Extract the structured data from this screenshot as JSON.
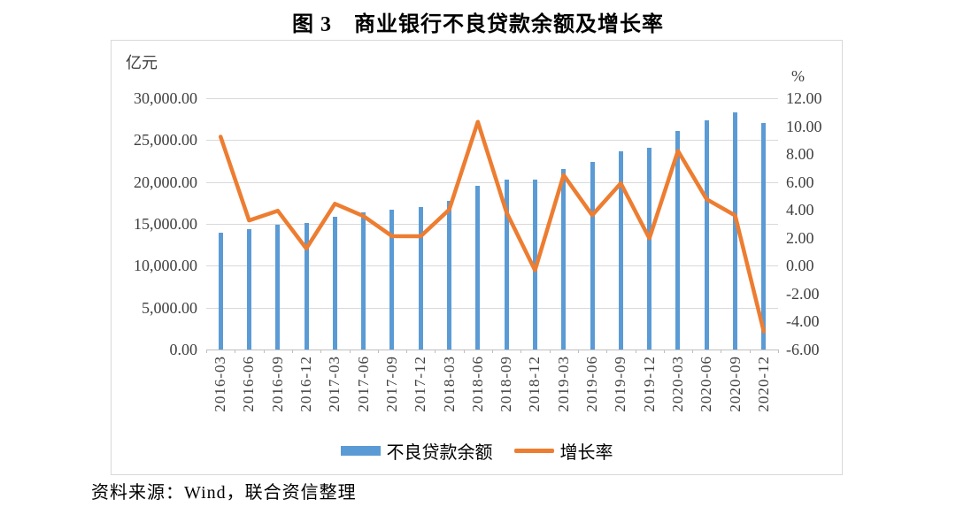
{
  "page": {
    "title": "图 3　商业银行不良贷款余额及增长率",
    "source_note": "资料来源：Wind，联合资信整理"
  },
  "chart_data": {
    "type": "combo-bar-line",
    "title": "图 3　商业银行不良贷款余额及增长率",
    "categories": [
      "2016-03",
      "2016-06",
      "2016-09",
      "2016-12",
      "2017-03",
      "2017-06",
      "2017-09",
      "2017-12",
      "2018-03",
      "2018-06",
      "2018-09",
      "2018-12",
      "2019-03",
      "2019-06",
      "2019-09",
      "2019-12",
      "2020-03",
      "2020-06",
      "2020-09",
      "2020-12"
    ],
    "series": [
      {
        "name": "不良贷款余额",
        "type": "bar",
        "axis": "left",
        "color": "#5B9BD5",
        "values": [
          13921,
          14373,
          14939,
          15123,
          15795,
          16358,
          16704,
          17057,
          17742,
          19571,
          20322,
          20254,
          21571,
          22352,
          23672,
          24135,
          26121,
          27364,
          28350,
          27015
        ]
      },
      {
        "name": "增长率",
        "type": "line",
        "axis": "right",
        "color": "#ED7D31",
        "values": [
          9.24,
          3.25,
          3.94,
          1.23,
          4.44,
          3.56,
          2.12,
          2.11,
          4.02,
          10.31,
          3.84,
          -0.33,
          6.5,
          3.62,
          5.91,
          1.96,
          8.23,
          4.76,
          3.6,
          -4.71
        ]
      }
    ],
    "left_axis": {
      "title": "亿元",
      "min": 0,
      "max": 30000,
      "step": 5000,
      "tick_labels": [
        "30,000.00",
        "25,000.00",
        "20,000.00",
        "15,000.00",
        "10,000.00",
        "5,000.00",
        "0.00"
      ]
    },
    "right_axis": {
      "title": "%",
      "min": -6,
      "max": 12,
      "step": 2,
      "tick_labels": [
        "12.00",
        "10.00",
        "8.00",
        "6.00",
        "4.00",
        "2.00",
        "0.00",
        "-2.00",
        "-4.00",
        "-6.00"
      ]
    },
    "legend": {
      "position": "bottom",
      "entries": [
        "不良贷款余额",
        "增长率"
      ]
    },
    "grid": true,
    "gridline_color": "#d9d9d9",
    "axis_text_color": "#404040"
  }
}
